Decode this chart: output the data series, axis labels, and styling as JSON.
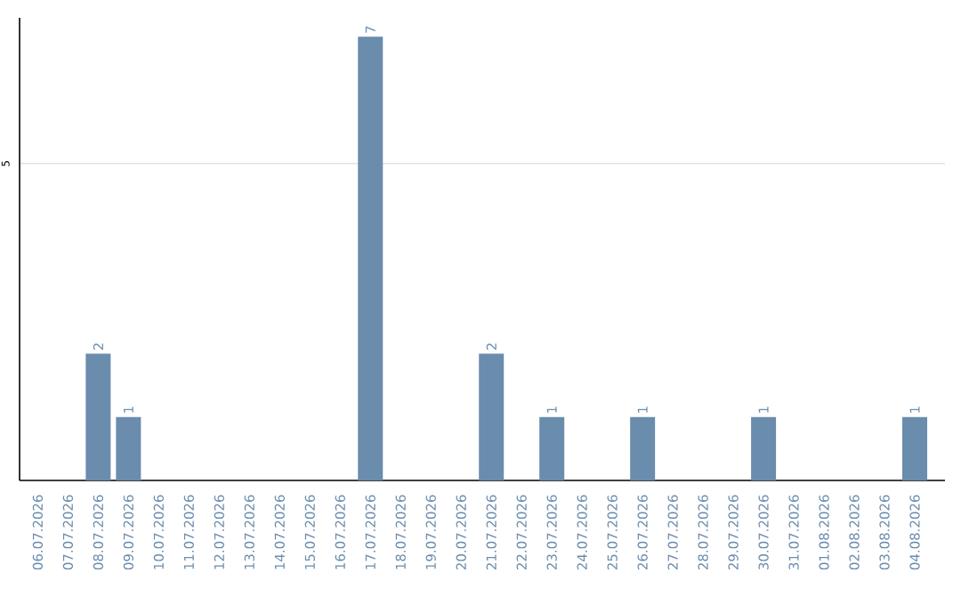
{
  "chart_data": {
    "type": "bar",
    "categories": [
      "06.07.2026",
      "07.07.2026",
      "08.07.2026",
      "09.07.2026",
      "10.07.2026",
      "11.07.2026",
      "12.07.2026",
      "13.07.2026",
      "14.07.2026",
      "15.07.2026",
      "16.07.2026",
      "17.07.2026",
      "18.07.2026",
      "19.07.2026",
      "20.07.2026",
      "21.07.2026",
      "22.07.2026",
      "23.07.2026",
      "24.07.2026",
      "25.07.2026",
      "26.07.2026",
      "27.07.2026",
      "28.07.2026",
      "29.07.2026",
      "30.07.2026",
      "31.07.2026",
      "01.08.2026",
      "02.08.2026",
      "03.08.2026",
      "04.08.2026"
    ],
    "values": [
      null,
      null,
      2,
      1,
      null,
      null,
      null,
      null,
      null,
      null,
      null,
      7,
      null,
      null,
      null,
      2,
      null,
      1,
      null,
      null,
      1,
      null,
      null,
      null,
      1,
      null,
      null,
      null,
      null,
      1
    ],
    "color": "#6a8cad",
    "ylim": [
      0,
      7.3
    ],
    "yticks": [
      5
    ],
    "grid": "y",
    "data_labels": true
  }
}
